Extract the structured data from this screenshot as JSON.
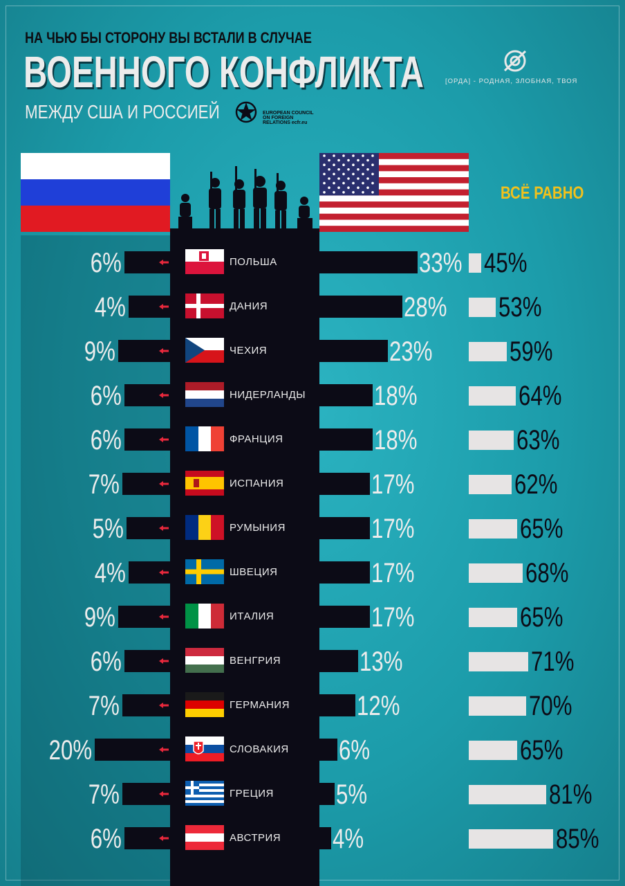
{
  "header": {
    "line1": "НА ЧЬЮ БЫ СТОРОНУ ВЫ ВСТАЛИ В СЛУЧАЕ",
    "line2": "ВОЕННОГО КОНФЛИКТА",
    "line3": "МЕЖДУ США И РОССИЕЙ",
    "source": "EUROPEAN COUNCIL ON FOREIGN RELATIONS ecfr.eu",
    "brand_tagline": "[ОРДА] - РОДНАЯ, ЗЛОБНАЯ, ТВОЯ",
    "neither_label": "ВСЁ РАВНО"
  },
  "colors": {
    "background": "#1c9caa",
    "dark": "#0c0b16",
    "light": "#e7e4e4",
    "accent": "#f2c11c",
    "arrow_left": "#e8283c",
    "arrow_right": "#2ab6d8"
  },
  "chart_data": {
    "type": "bar",
    "categories": [
      "ПОЛЬША",
      "ДАНИЯ",
      "ЧЕХИЯ",
      "НИДЕРЛАНДЫ",
      "ФРАНЦИЯ",
      "ИСПАНИЯ",
      "РУМЫНИЯ",
      "ШВЕЦИЯ",
      "ИТАЛИЯ",
      "ВЕНГРИЯ",
      "ГЕРМАНИЯ",
      "СЛОВАКИЯ",
      "ГРЕЦИЯ",
      "АВСТРИЯ"
    ],
    "series": [
      {
        "side": "Russia",
        "values": [
          6,
          4,
          9,
          6,
          6,
          7,
          5,
          4,
          9,
          6,
          7,
          20,
          7,
          6
        ]
      },
      {
        "side": "USA",
        "values": [
          33,
          28,
          23,
          18,
          18,
          17,
          17,
          17,
          17,
          13,
          12,
          6,
          5,
          4
        ]
      },
      {
        "name": "ВСЁ РАВНО",
        "values": [
          45,
          53,
          59,
          64,
          63,
          62,
          65,
          68,
          65,
          71,
          70,
          65,
          81,
          85
        ]
      }
    ],
    "unit": "%",
    "flags": [
      "poland",
      "denmark",
      "czechia",
      "netherlands",
      "france",
      "spain",
      "romania",
      "sweden",
      "italy",
      "hungary",
      "germany",
      "slovakia",
      "greece",
      "austria"
    ]
  }
}
